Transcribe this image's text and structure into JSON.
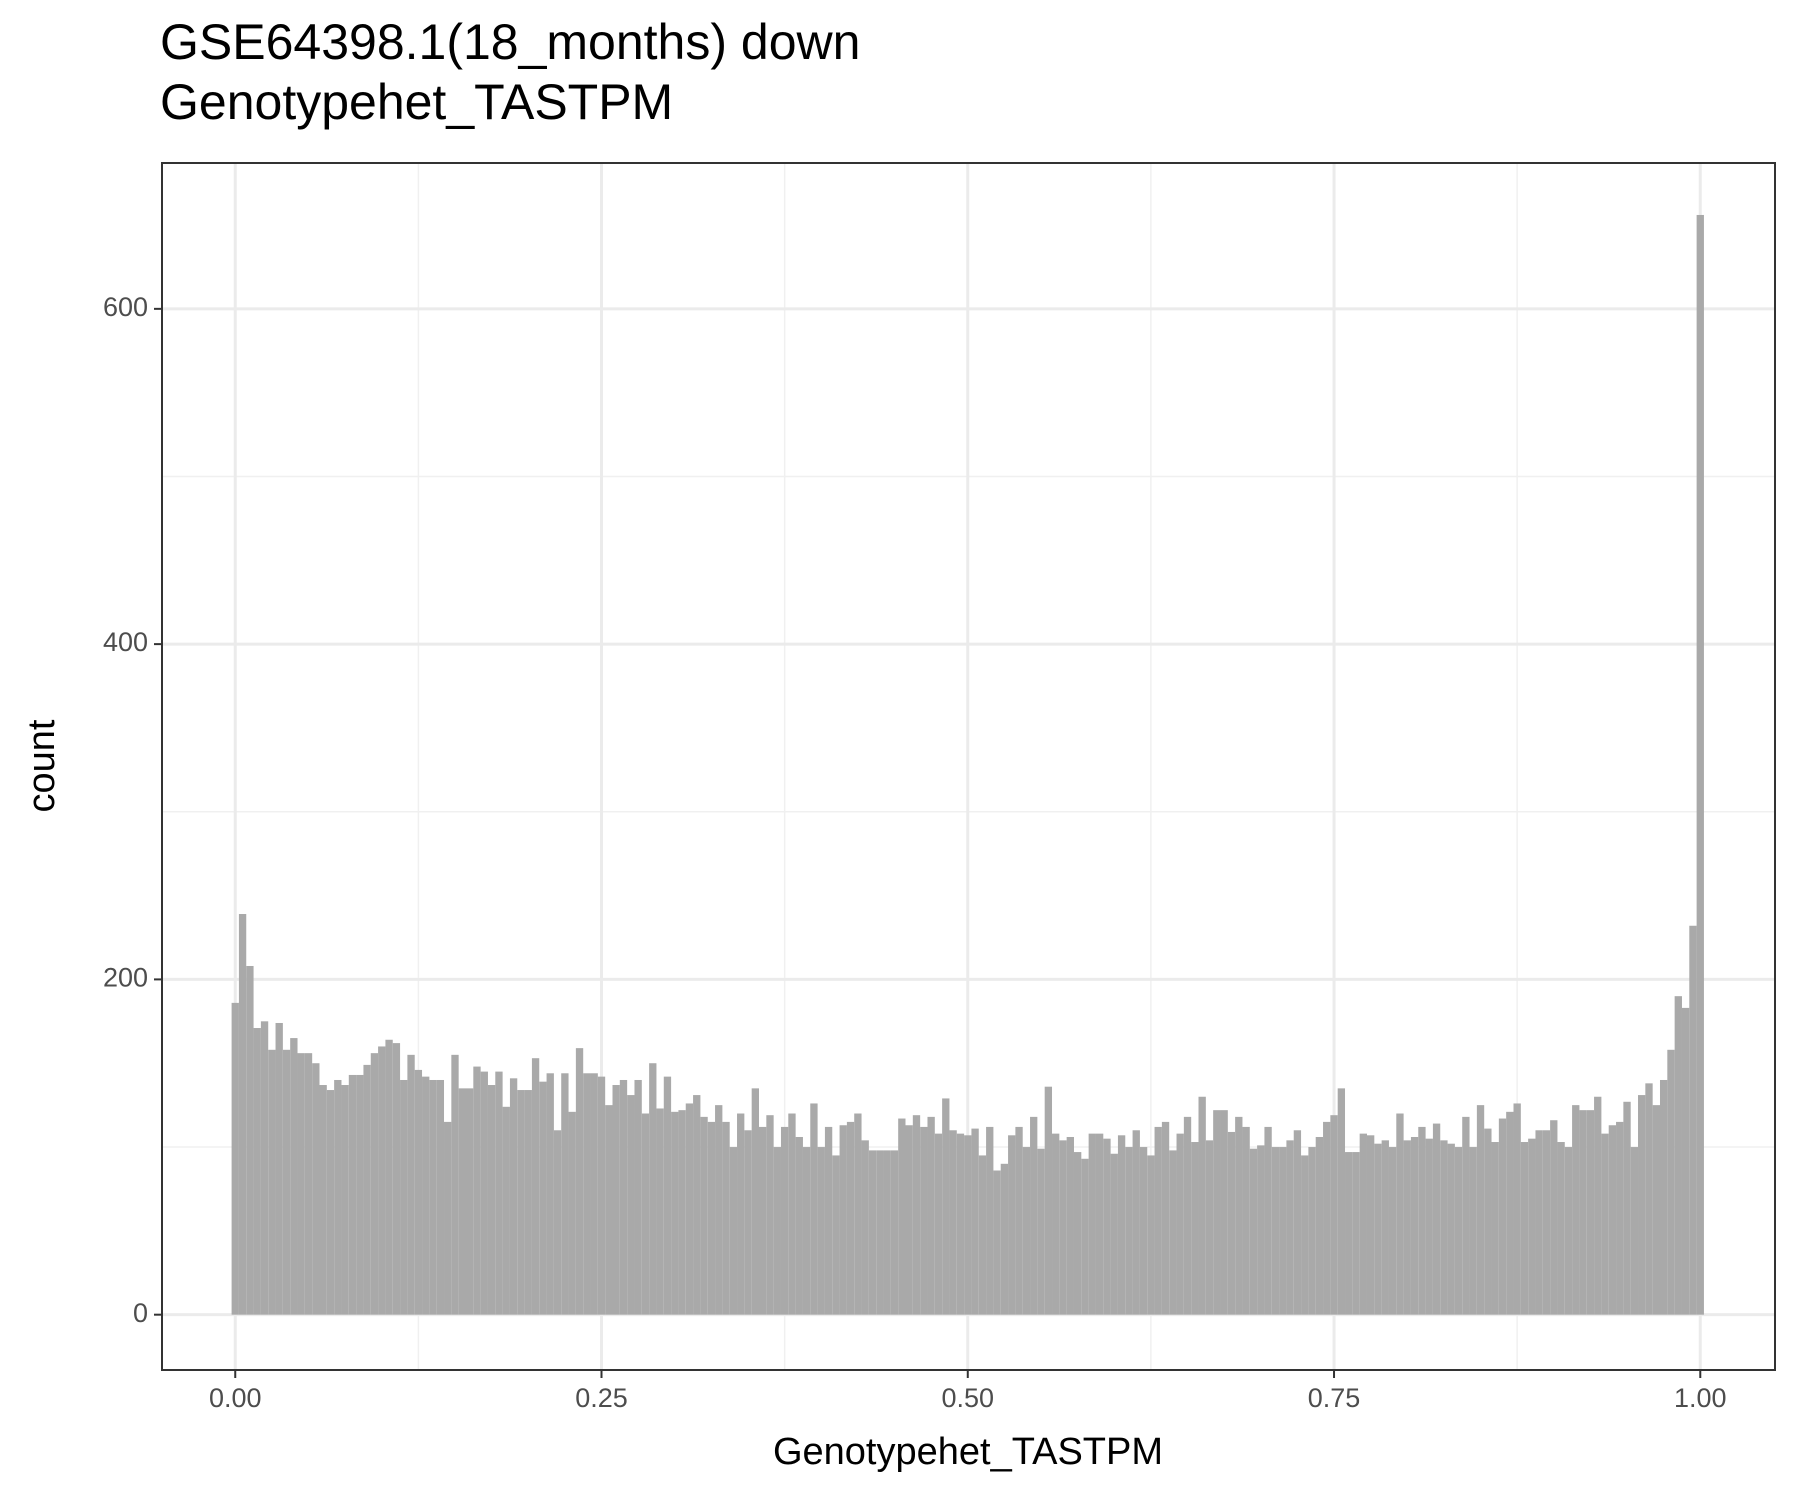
{
  "chart_data": {
    "type": "histogram",
    "title": "GSE64398.1(18_months) down",
    "subtitle": "Genotypehet_TASTPM",
    "x_label": "Genotypehet_TASTPM",
    "y_label": "count",
    "color": "#a9a9a9",
    "grid": true,
    "xlim": [
      -0.05,
      1.051
    ],
    "ylim": [
      -33,
      687
    ],
    "xticks": [
      {
        "value": 0,
        "label": "0.00"
      },
      {
        "value": 0.25,
        "label": "0.25"
      },
      {
        "value": 0.5,
        "label": "0.50"
      },
      {
        "value": 0.75,
        "label": "0.75"
      },
      {
        "value": 1,
        "label": "1.00"
      }
    ],
    "yticks": [
      0,
      200,
      400,
      600
    ],
    "xminor": [
      0.125,
      0.375,
      0.625,
      0.875
    ],
    "yminor": [
      100,
      300,
      500
    ],
    "bins": [
      -0.0025,
      0.0025,
      0.0075,
      0.0125,
      0.0175,
      0.0225,
      0.0275,
      0.0325,
      0.0375,
      0.0425,
      0.0475,
      0.0525,
      0.0575,
      0.0625,
      0.0675,
      0.0725,
      0.0775,
      0.0825,
      0.0875,
      0.0925,
      0.0975,
      0.1025,
      0.1075,
      0.1125,
      0.1175,
      0.1225,
      0.1275,
      0.1325,
      0.1375,
      0.1425,
      0.1475,
      0.1525,
      0.1575,
      0.1625,
      0.1675,
      0.1725,
      0.1775,
      0.1825,
      0.1875,
      0.1925,
      0.1975,
      0.2025,
      0.2075,
      0.2125,
      0.2175,
      0.2225,
      0.2275,
      0.2325,
      0.2375,
      0.2425,
      0.2475,
      0.2525,
      0.2575,
      0.2625,
      0.2675,
      0.2725,
      0.2775,
      0.2825,
      0.2875,
      0.2925,
      0.2975,
      0.3025,
      0.3075,
      0.3125,
      0.3175,
      0.3225,
      0.3275,
      0.3325,
      0.3375,
      0.3425,
      0.3475,
      0.3525,
      0.3575,
      0.3625,
      0.3675,
      0.3725,
      0.3775,
      0.3825,
      0.3875,
      0.3925,
      0.3975,
      0.4025,
      0.4075,
      0.4125,
      0.4175,
      0.4225,
      0.4275,
      0.4325,
      0.4375,
      0.4425,
      0.4475,
      0.4525,
      0.4575,
      0.4625,
      0.4675,
      0.4725,
      0.4775,
      0.4825,
      0.4875,
      0.4925,
      0.4975,
      0.5025,
      0.5075,
      0.5125,
      0.5175,
      0.5225,
      0.5275,
      0.5325,
      0.5375,
      0.5425,
      0.5475,
      0.5525,
      0.5575,
      0.5625,
      0.5675,
      0.5725,
      0.5775,
      0.5825,
      0.5875,
      0.5925,
      0.5975,
      0.6025,
      0.6075,
      0.6125,
      0.6175,
      0.6225,
      0.6275,
      0.6325,
      0.6375,
      0.6425,
      0.6475,
      0.6525,
      0.6575,
      0.6625,
      0.6675,
      0.6725,
      0.6775,
      0.6825,
      0.6875,
      0.6925,
      0.6975,
      0.7025,
      0.7075,
      0.7125,
      0.7175,
      0.7225,
      0.7275,
      0.7325,
      0.7375,
      0.7425,
      0.7475,
      0.7525,
      0.7575,
      0.7625,
      0.7675,
      0.7725,
      0.7775,
      0.7825,
      0.7875,
      0.7925,
      0.7975,
      0.8025,
      0.8075,
      0.8125,
      0.8175,
      0.8225,
      0.8275,
      0.8325,
      0.8375,
      0.8425,
      0.8475,
      0.8525,
      0.8575,
      0.8625,
      0.8675,
      0.8725,
      0.8775,
      0.8825,
      0.8875,
      0.8925,
      0.8975,
      0.9025,
      0.9075,
      0.9125,
      0.9175,
      0.9225,
      0.9275,
      0.9325,
      0.9375,
      0.9425,
      0.9475,
      0.9525,
      0.9575,
      0.9625,
      0.9675,
      0.9725,
      0.9775,
      0.9825,
      0.9875,
      0.9925,
      0.9975,
      1.0025
    ],
    "values": [
      186,
      239,
      208,
      171,
      175,
      158,
      174,
      158,
      165,
      156,
      156,
      150,
      137,
      134,
      140,
      137,
      143,
      143,
      149,
      156,
      160,
      164,
      162,
      140,
      155,
      146,
      142,
      140,
      140,
      115,
      155,
      135,
      135,
      148,
      145,
      137,
      145,
      124,
      141,
      134,
      134,
      153,
      139,
      144,
      110,
      144,
      121,
      159,
      144,
      144,
      142,
      125,
      137,
      140,
      131,
      140,
      120,
      150,
      123,
      142,
      121,
      122,
      126,
      131,
      118,
      115,
      125,
      115,
      100,
      120,
      110,
      135,
      112,
      119,
      100,
      112,
      120,
      106,
      100,
      126,
      100,
      112,
      95,
      113,
      115,
      120,
      104,
      98,
      98,
      98,
      98,
      117,
      113,
      119,
      112,
      118,
      108,
      129,
      110,
      108,
      107,
      111,
      95,
      112,
      86,
      90,
      107,
      112,
      100,
      118,
      99,
      136,
      108,
      104,
      106,
      97,
      93,
      108,
      108,
      105,
      96,
      107,
      100,
      110,
      100,
      95,
      112,
      115,
      98,
      108,
      118,
      103,
      130,
      104,
      122,
      122,
      109,
      118,
      112,
      99,
      101,
      112,
      100,
      100,
      104,
      110,
      95,
      100,
      106,
      115,
      119,
      135,
      97,
      97,
      108,
      107,
      102,
      104,
      100,
      120,
      104,
      106,
      112,
      105,
      114,
      104,
      102,
      100,
      118,
      100,
      125,
      111,
      103,
      117,
      121,
      126,
      103,
      105,
      110,
      110,
      116,
      103,
      100,
      125,
      122,
      122,
      130,
      108,
      113,
      115,
      127,
      100,
      131,
      138,
      125,
      140,
      158,
      190,
      183,
      232,
      656
    ]
  }
}
